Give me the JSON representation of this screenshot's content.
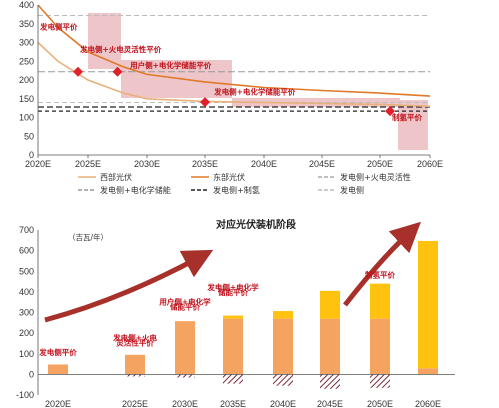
{
  "chart_data": [
    {
      "type": "line",
      "x": [
        "2020E",
        "2025E",
        "2030E",
        "2035E",
        "2040E",
        "2045E",
        "2050E",
        "2060E"
      ],
      "x_numeric": [
        2020,
        2025,
        2030,
        2035,
        2040,
        2045,
        2050,
        2060
      ],
      "ylim": [
        0,
        400
      ],
      "y_ticks": [
        0,
        50,
        100,
        150,
        200,
        250,
        300,
        350,
        400
      ],
      "series": [
        {
          "name": "西部光伏",
          "color": "#e8b07a",
          "points": [
            [
              2020,
              300
            ],
            [
              2022,
              250
            ],
            [
              2025,
              200
            ],
            [
              2028,
              165
            ],
            [
              2030,
              150
            ],
            [
              2035,
              143
            ],
            [
              2040,
              140
            ],
            [
              2050,
              135
            ],
            [
              2060,
              130
            ]
          ]
        },
        {
          "name": "东部光伏",
          "color": "#e07a2a",
          "points": [
            [
              2020,
              400
            ],
            [
              2022,
              340
            ],
            [
              2025,
              275
            ],
            [
              2028,
              235
            ],
            [
              2030,
              215
            ],
            [
              2035,
              195
            ],
            [
              2040,
              180
            ],
            [
              2045,
              172
            ],
            [
              2050,
              165
            ],
            [
              2060,
              157
            ]
          ]
        }
      ],
      "hlines": [
        {
          "name": "发电侧+火电灵活性",
          "value": 372,
          "color": "#bbbbbb",
          "dash": "5,3"
        },
        {
          "name": "发电侧+电化学储能",
          "value": 222,
          "color": "#999999",
          "dash": "7,3"
        },
        {
          "name": "发电侧",
          "value": 140,
          "color": "#bbbbbb",
          "dash": "5,3"
        },
        {
          "name": "发电侧+制氢",
          "value": 128,
          "color": "#222222",
          "dash": "6,3"
        },
        {
          "name": "",
          "value": 117,
          "color": "#222222",
          "dash": "4,3"
        }
      ],
      "markers": [
        {
          "x": 2024,
          "y": 222
        },
        {
          "x": 2027.5,
          "y": 222
        },
        {
          "x": 2035,
          "y": 141
        },
        {
          "x": 2052,
          "y": 117
        }
      ],
      "annotations": [
        {
          "text": "发电侧平价",
          "x": 2020,
          "y": 335
        },
        {
          "text": "发电侧+火电灵活性平价",
          "x": 2024,
          "y": 275
        },
        {
          "text": "用户侧+电化学储能平价",
          "x": 2028.4,
          "y": 232
        },
        {
          "text": "发电侧+电化学储能平价",
          "x": 2035.6,
          "y": 161
        },
        {
          "text": "制氢平价",
          "x": 2052,
          "y": 93
        }
      ],
      "legend": [
        {
          "label": "西部光伏",
          "color": "#e8b07a",
          "style": "solid"
        },
        {
          "label": "东部光伏",
          "color": "#e07a2a",
          "style": "solid"
        },
        {
          "label": "发电侧+火电灵活性",
          "color": "#aaaaaa",
          "style": "dash"
        },
        {
          "label": "发电侧+电化学储能",
          "color": "#999999",
          "style": "dash"
        },
        {
          "label": "发电侧+制氢",
          "color": "#222222",
          "style": "dash"
        },
        {
          "label": "发电侧",
          "color": "#bbbbbb",
          "style": "dash"
        }
      ]
    },
    {
      "type": "bar",
      "title": "对应光伏装机阶段",
      "unit_label": "（吉瓦/年）",
      "categories": [
        "2020E",
        "2025E",
        "2030E",
        "2035E",
        "2040E",
        "2045E",
        "2050E",
        "2060E"
      ],
      "ylim": [
        -100,
        700
      ],
      "y_ticks": [
        -100,
        0,
        100,
        200,
        300,
        400,
        500,
        600,
        700
      ],
      "series": [
        {
          "name": "",
          "color": "#f4a460",
          "values": [
            48,
            95,
            258,
            270,
            270,
            270,
            270,
            30
          ]
        },
        {
          "name": "",
          "color": "#ffc20e",
          "values": [
            0,
            0,
            0,
            15,
            37,
            135,
            170,
            617
          ]
        },
        {
          "name": "",
          "color": "#7a2a3a",
          "pattern": "hatch",
          "values": [
            0,
            -10,
            -15,
            -45,
            -55,
            -70,
            -65,
            0
          ]
        }
      ],
      "annotations": [
        {
          "text": "发电侧平价",
          "cat": 0,
          "y": 95
        },
        {
          "text": "发电侧+火电",
          "cat": 1,
          "y": 165
        },
        {
          "text": "灵活性平价",
          "cat": 1,
          "y": 140
        },
        {
          "text": "用户侧+电化学",
          "cat": 2,
          "y": 340
        },
        {
          "text": "储能平价",
          "cat": 2,
          "y": 315
        },
        {
          "text": "发电侧+电化学",
          "cat": 3,
          "y": 410
        },
        {
          "text": "储能平价",
          "cat": 3,
          "y": 385
        },
        {
          "text": "制氢平价",
          "cat": 6,
          "y": 470
        }
      ]
    }
  ]
}
